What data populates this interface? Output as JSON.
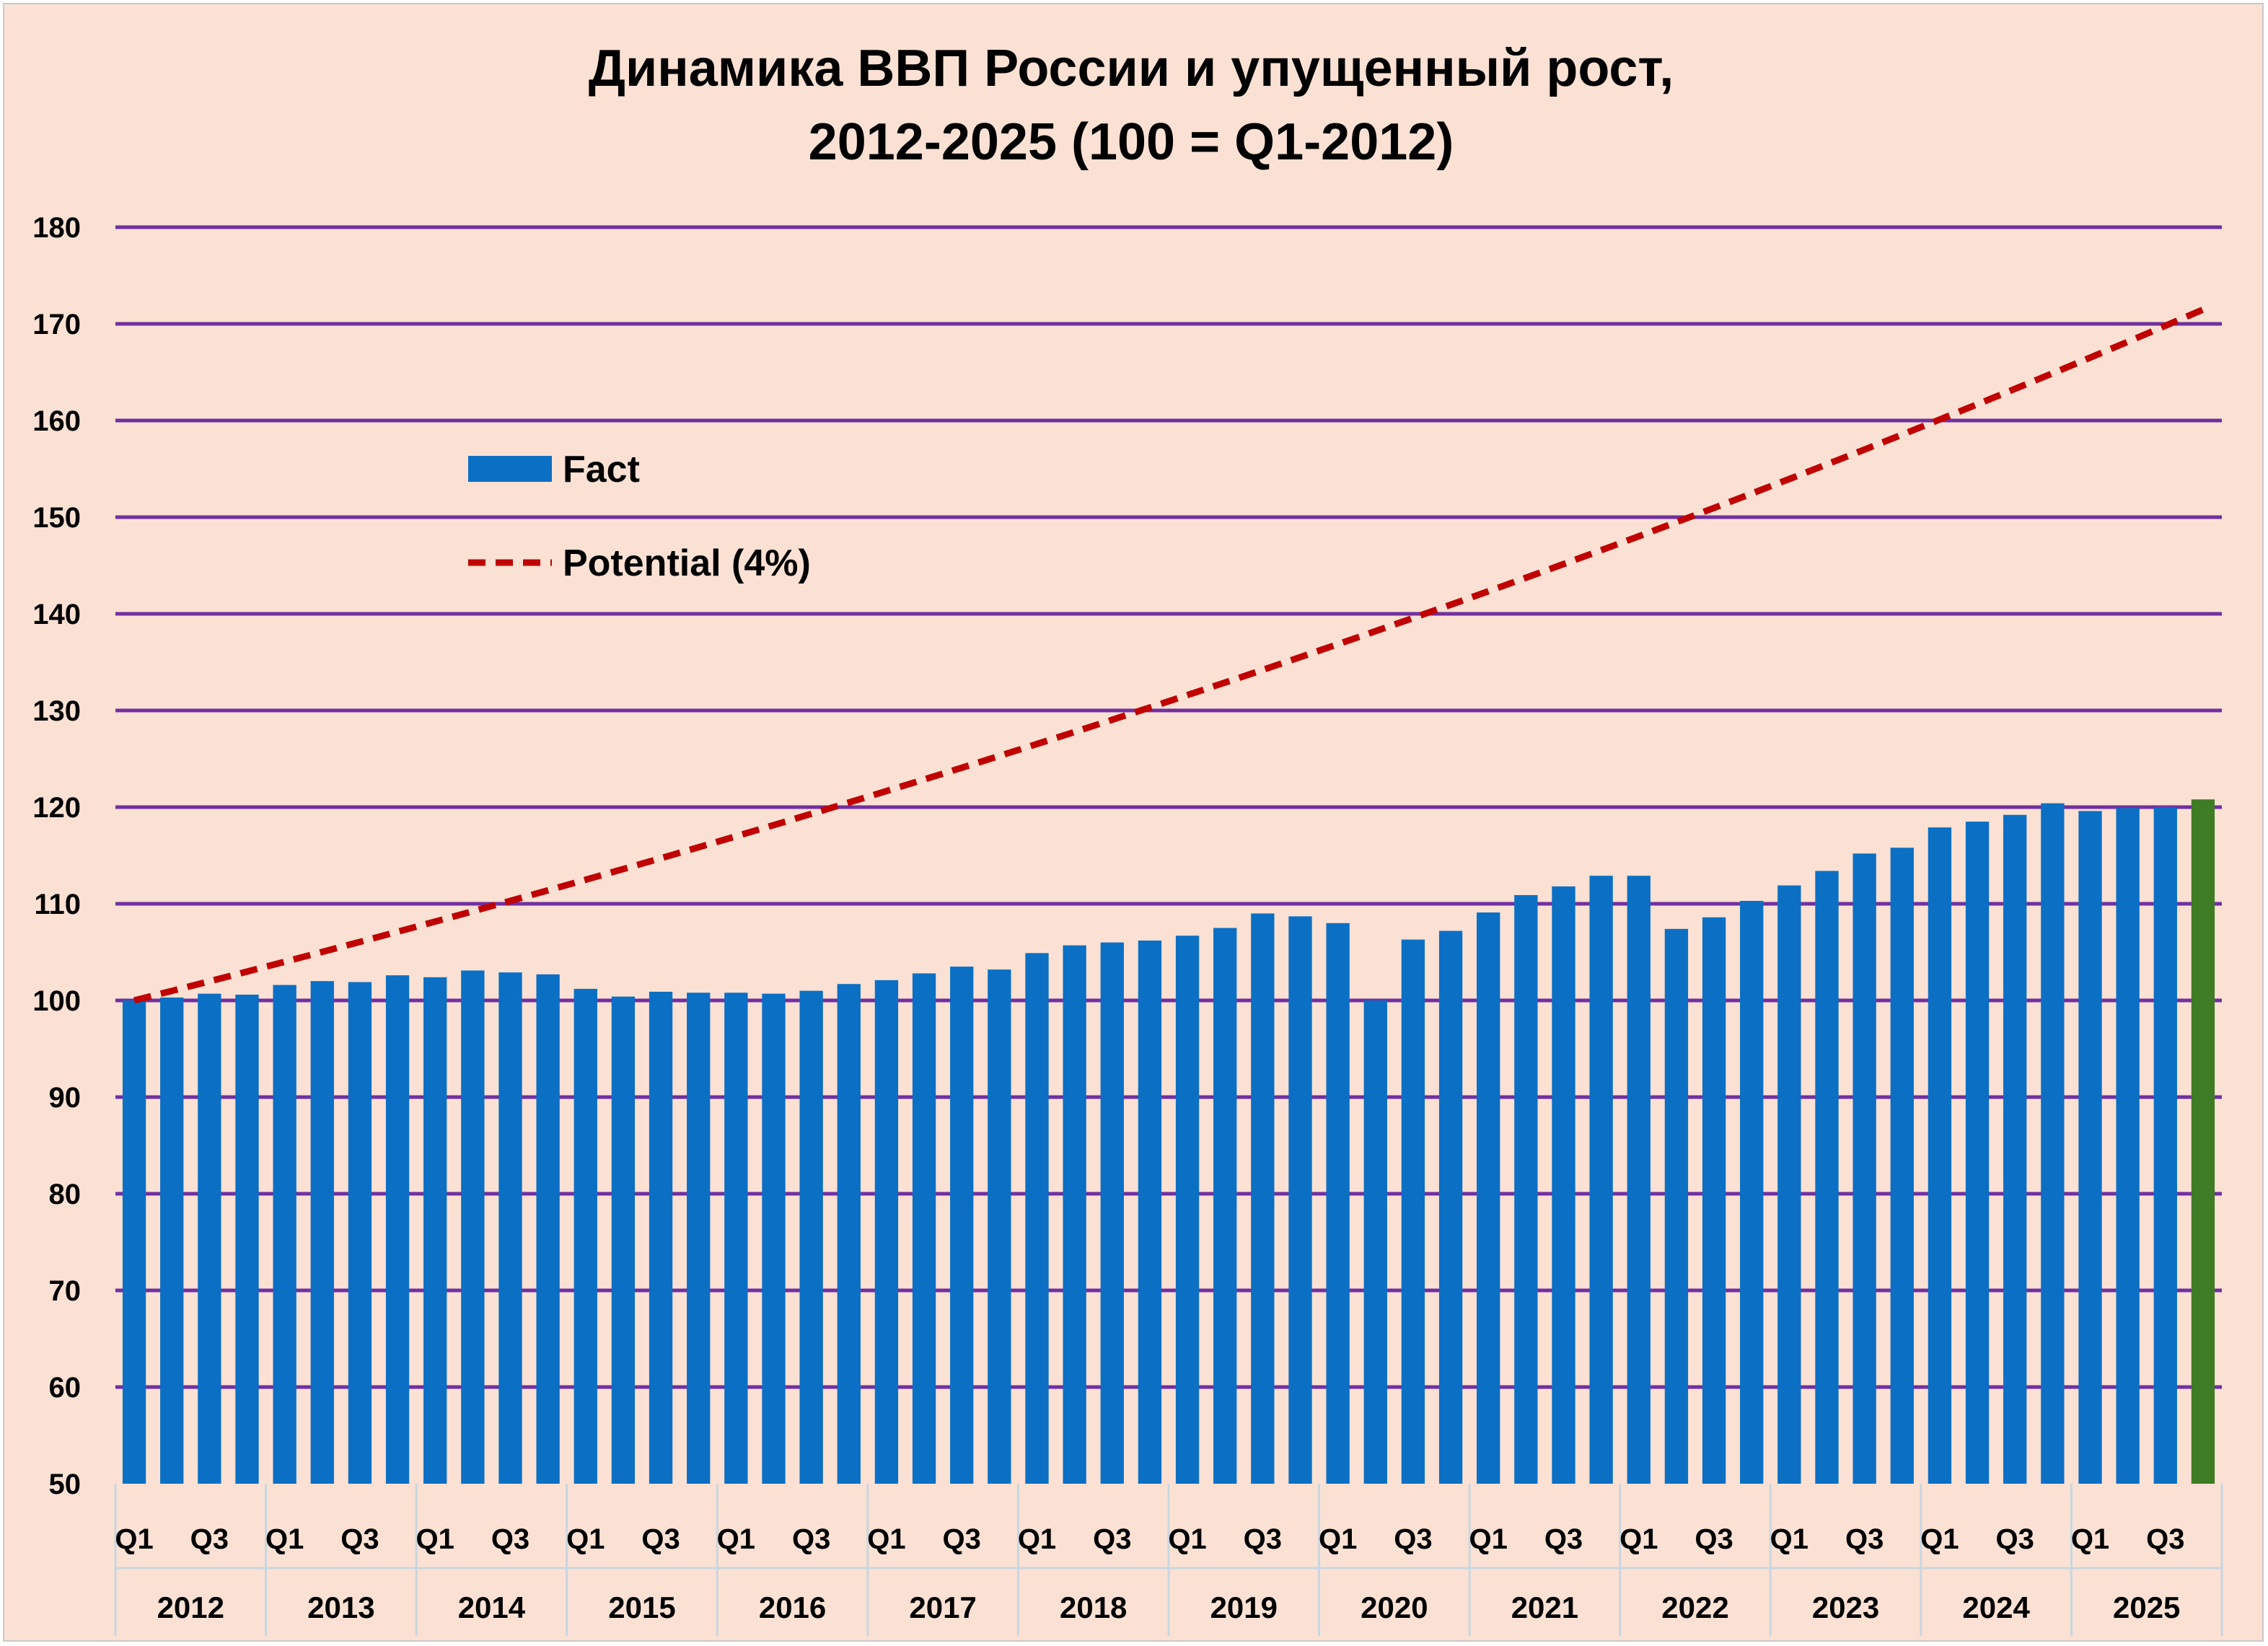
{
  "chart_data": {
    "type": "bar",
    "title": [
      "Динамика ВВП России и упущенный рост,",
      "2012-2025 (100 = Q1-2012)"
    ],
    "ylim": [
      50,
      180
    ],
    "yticks": [
      50,
      60,
      70,
      80,
      90,
      100,
      110,
      120,
      130,
      140,
      150,
      160,
      170,
      180
    ],
    "grid": true,
    "legend_position": "upper-left",
    "years": [
      "2012",
      "2013",
      "2014",
      "2015",
      "2016",
      "2017",
      "2018",
      "2019",
      "2020",
      "2021",
      "2022",
      "2023",
      "2024",
      "2025"
    ],
    "quarter_labels": [
      "Q1",
      "",
      "Q3",
      ""
    ],
    "colors": {
      "bar": "#0b70c4",
      "highlight": "#3e7d25",
      "line": "#c00000",
      "grid": "#7030a0",
      "background": "#fbe1d3"
    },
    "series": [
      {
        "name": "Fact",
        "type": "bar",
        "values": [
          100.0,
          100.3,
          100.7,
          100.6,
          101.6,
          102.0,
          101.9,
          102.6,
          102.4,
          103.1,
          102.9,
          102.7,
          101.2,
          100.4,
          100.9,
          100.8,
          100.8,
          100.7,
          101.0,
          101.7,
          102.1,
          102.8,
          103.5,
          103.2,
          104.9,
          105.7,
          106.0,
          106.2,
          106.7,
          107.5,
          109.0,
          108.7,
          108.0,
          100.0,
          106.3,
          107.2,
          109.1,
          110.9,
          111.8,
          112.9,
          112.9,
          107.4,
          108.6,
          110.3,
          111.9,
          113.4,
          115.2,
          115.8,
          117.9,
          118.5,
          119.2,
          120.4,
          119.6,
          119.9,
          120.0,
          120.8
        ],
        "highlight_index": 55
      },
      {
        "name": "Potential (4%)",
        "type": "line",
        "style": "dashed",
        "start": 100,
        "annual_growth_pct": 4
      }
    ]
  }
}
